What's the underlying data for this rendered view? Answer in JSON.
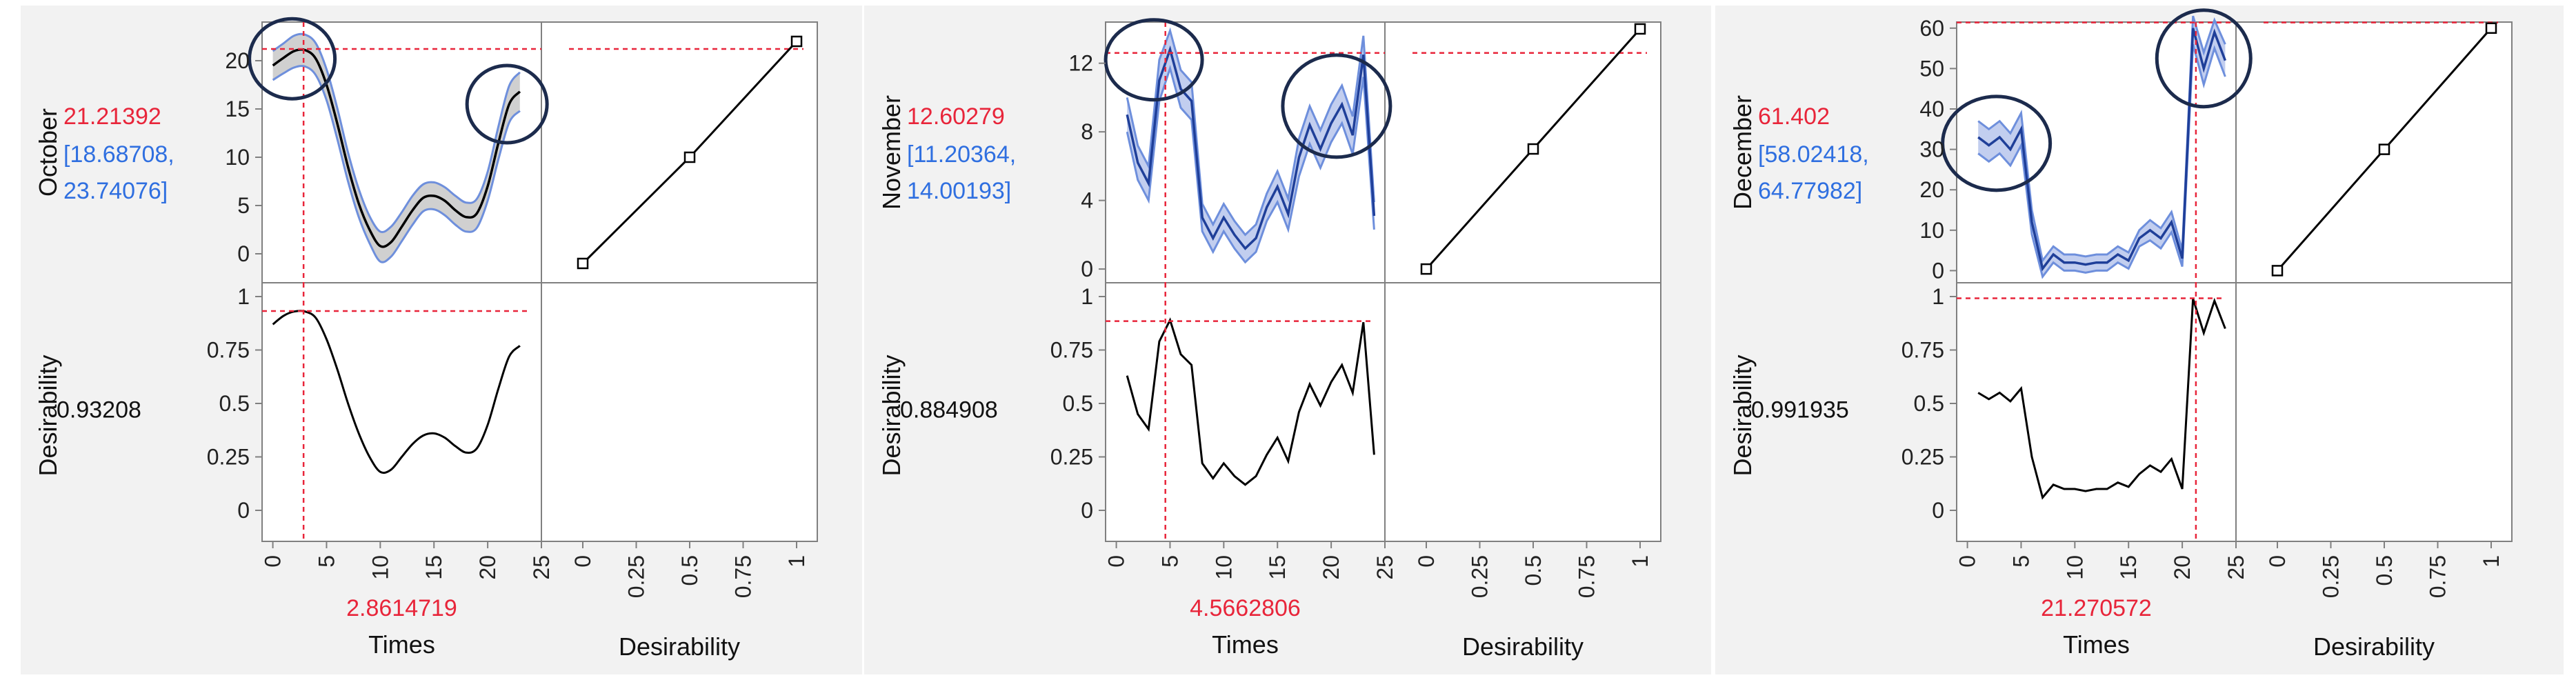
{
  "ui": {
    "colors": {
      "panel_bg": "#f2f2f2",
      "plot_bg": "#ffffff",
      "frame": "#808080",
      "curve": "#000000",
      "band_fill": "#c8c8c8",
      "band_edge": "#6e8fdc",
      "series_line": "#1f3f99",
      "crosshair": "#e8253a",
      "value_red": "#e8253a",
      "interval_blue": "#2f6fe0",
      "circle": "#1c2b4d"
    }
  },
  "chart_data": [
    {
      "type": "line",
      "response_label": "October",
      "predicted_value": "21.21392",
      "interval_open": "[18.68708,",
      "interval_close": "23.74076]",
      "desirability_label": "Desirability",
      "desirability_value": "0.93208",
      "x_label": "Times",
      "x_value": "2.8614719",
      "x_current": 2.8614719,
      "fn_x_label": "Desirability",
      "smooth": true,
      "band_style": "gray",
      "xlim": [
        -1,
        25
      ],
      "ylim": [
        -3,
        24
      ],
      "y_ticks": [
        0,
        5,
        10,
        15,
        20
      ],
      "y_tick_labels": [
        "0",
        "5",
        "10",
        "15",
        "20"
      ],
      "d_ticks": [
        0,
        0.25,
        0.5,
        0.75,
        1
      ],
      "d_tick_labels": [
        "0",
        "0.25",
        "0.5",
        "0.75",
        "1"
      ],
      "x_ticks": [
        0,
        5,
        10,
        15,
        20,
        25
      ],
      "x_tick_labels": [
        "0",
        "5",
        "10",
        "15",
        "20",
        "25"
      ],
      "f_ticks": [
        0,
        0.25,
        0.5,
        0.75,
        1
      ],
      "f_tick_labels": [
        "0",
        "0.25",
        "0.5",
        "0.75",
        "1"
      ],
      "x": [
        0,
        1,
        2,
        3,
        4,
        5,
        6,
        7,
        8,
        9,
        10,
        11,
        12,
        13,
        14,
        15,
        16,
        17,
        18,
        19,
        20,
        21,
        22,
        23
      ],
      "y": [
        19.5,
        20.3,
        21.0,
        21.1,
        20.2,
        17.5,
        13.5,
        9.0,
        5.2,
        2.5,
        0.8,
        1.2,
        2.8,
        4.5,
        5.8,
        6.0,
        5.5,
        4.5,
        3.8,
        4.2,
        7.0,
        11.5,
        15.5,
        16.8
      ],
      "y_lower": [
        18.0,
        18.7,
        19.3,
        19.4,
        18.5,
        15.9,
        11.9,
        7.5,
        3.8,
        1.1,
        -0.8,
        -0.3,
        1.3,
        3.0,
        4.4,
        4.6,
        4.0,
        3.0,
        2.3,
        2.7,
        5.5,
        9.8,
        13.6,
        14.8
      ],
      "y_upper": [
        21.0,
        21.8,
        22.6,
        22.7,
        21.8,
        19.1,
        15.1,
        10.5,
        6.7,
        3.9,
        2.3,
        2.8,
        4.3,
        6.0,
        7.2,
        7.4,
        6.9,
        6.0,
        5.3,
        5.7,
        8.5,
        13.2,
        17.4,
        18.8
      ],
      "d": [
        0.87,
        0.91,
        0.93,
        0.93,
        0.9,
        0.8,
        0.66,
        0.5,
        0.36,
        0.25,
        0.18,
        0.19,
        0.25,
        0.31,
        0.35,
        0.36,
        0.34,
        0.3,
        0.27,
        0.29,
        0.4,
        0.57,
        0.72,
        0.77
      ],
      "y_current": 21.21392,
      "d_current": 0.93208,
      "desirability_fn": [
        [
          0,
          -1
        ],
        [
          10.5,
          10
        ],
        [
          21.2,
          22
        ]
      ]
    },
    {
      "type": "line",
      "response_label": "November",
      "predicted_value": "12.60279",
      "interval_open": "[11.20364,",
      "interval_close": "14.00193]",
      "desirability_label": "Desirability",
      "desirability_value": "0.884908",
      "x_label": "Times",
      "x_value": "4.5662806",
      "x_current": 4.5662806,
      "fn_x_label": "Desirability",
      "smooth": false,
      "band_style": "blue",
      "xlim": [
        -1,
        25
      ],
      "ylim": [
        -0.8,
        14.4
      ],
      "y_ticks": [
        0,
        4,
        8,
        12
      ],
      "y_tick_labels": [
        "0",
        "4",
        "8",
        "12"
      ],
      "d_ticks": [
        0,
        0.25,
        0.5,
        0.75,
        1
      ],
      "d_tick_labels": [
        "0",
        "0.25",
        "0.5",
        "0.75",
        "1"
      ],
      "x_ticks": [
        0,
        5,
        10,
        15,
        20,
        25
      ],
      "x_tick_labels": [
        "0",
        "5",
        "10",
        "15",
        "20",
        "25"
      ],
      "f_ticks": [
        0,
        0.25,
        0.5,
        0.75,
        1
      ],
      "f_tick_labels": [
        "0",
        "0.25",
        "0.5",
        "0.75",
        "1"
      ],
      "x": [
        1,
        2,
        3,
        4,
        5,
        6,
        7,
        8,
        9,
        10,
        11,
        12,
        13,
        14,
        15,
        16,
        17,
        18,
        19,
        20,
        21,
        22,
        23,
        24
      ],
      "y": [
        9.0,
        6.2,
        5.0,
        11.0,
        12.8,
        10.5,
        9.8,
        3.0,
        1.8,
        3.0,
        2.0,
        1.2,
        1.8,
        3.6,
        4.8,
        3.2,
        6.5,
        8.4,
        7.0,
        8.5,
        9.6,
        7.8,
        12.5,
        3.1
      ],
      "y_lower": [
        8.0,
        5.2,
        4.0,
        9.8,
        11.7,
        9.4,
        8.7,
        2.2,
        1.0,
        2.2,
        1.2,
        0.4,
        1.0,
        2.8,
        3.9,
        2.3,
        5.4,
        7.3,
        5.9,
        7.4,
        8.5,
        6.7,
        11.2,
        2.3
      ],
      "y_upper": [
        10.0,
        7.2,
        6.0,
        12.2,
        13.9,
        11.6,
        10.9,
        3.8,
        2.6,
        3.8,
        2.8,
        2.0,
        2.6,
        4.4,
        5.7,
        4.1,
        7.6,
        9.5,
        8.1,
        9.6,
        10.7,
        8.9,
        13.6,
        3.9
      ],
      "d": [
        0.63,
        0.45,
        0.38,
        0.79,
        0.89,
        0.73,
        0.68,
        0.22,
        0.15,
        0.22,
        0.16,
        0.12,
        0.16,
        0.26,
        0.34,
        0.23,
        0.46,
        0.59,
        0.49,
        0.6,
        0.68,
        0.55,
        0.88,
        0.26
      ],
      "y_current": 12.60279,
      "d_current": 0.884908,
      "desirability_fn": [
        [
          0,
          0
        ],
        [
          7,
          7
        ],
        [
          14,
          14
        ]
      ]
    },
    {
      "type": "line",
      "response_label": "December",
      "predicted_value": "61.402",
      "interval_open": "[58.02418,",
      "interval_close": "64.77982]",
      "desirability_label": "Desirability",
      "desirability_value": "0.991935",
      "x_label": "Times",
      "x_value": "21.270572",
      "x_current": 21.270572,
      "fn_x_label": "Desirability",
      "smooth": false,
      "band_style": "blue",
      "xlim": [
        -1,
        25
      ],
      "ylim": [
        -3,
        61.5
      ],
      "y_ticks": [
        0,
        10,
        20,
        30,
        40,
        50,
        60
      ],
      "y_tick_labels": [
        "0",
        "10",
        "20",
        "30",
        "40",
        "50",
        "60"
      ],
      "d_ticks": [
        0,
        0.25,
        0.5,
        0.75,
        1
      ],
      "d_tick_labels": [
        "0",
        "0.25",
        "0.5",
        "0.75",
        "1"
      ],
      "x_ticks": [
        0,
        5,
        10,
        15,
        20,
        25
      ],
      "x_tick_labels": [
        "0",
        "5",
        "10",
        "15",
        "20",
        "25"
      ],
      "f_ticks": [
        0,
        0.25,
        0.5,
        0.75,
        1
      ],
      "f_tick_labels": [
        "0",
        "0.25",
        "0.5",
        "0.75",
        "1"
      ],
      "x": [
        1,
        2,
        3,
        4,
        5,
        6,
        7,
        8,
        9,
        10,
        11,
        12,
        13,
        14,
        15,
        16,
        17,
        18,
        19,
        20,
        21,
        22,
        23,
        24
      ],
      "y": [
        33,
        31,
        33,
        30,
        35,
        12,
        0.5,
        4,
        2,
        2,
        1.5,
        2,
        2,
        4,
        2.5,
        8,
        10,
        8,
        12,
        3,
        60,
        50,
        59,
        52
      ],
      "y_lower": [
        29,
        27,
        29,
        26,
        31,
        9,
        -1.5,
        2,
        0,
        0,
        -0.5,
        0,
        0,
        2,
        0.5,
        6,
        7.5,
        5.5,
        9.5,
        1,
        56,
        46,
        55,
        48
      ],
      "y_upper": [
        37,
        35,
        37,
        34,
        39,
        15,
        2.5,
        6,
        4,
        4,
        3.5,
        4,
        4,
        6,
        4.5,
        10,
        12.5,
        10.5,
        14.5,
        5,
        63,
        54,
        62,
        56
      ],
      "d": [
        0.55,
        0.52,
        0.55,
        0.51,
        0.57,
        0.25,
        0.06,
        0.12,
        0.1,
        0.1,
        0.09,
        0.1,
        0.1,
        0.13,
        0.11,
        0.17,
        0.21,
        0.18,
        0.24,
        0.1,
        0.99,
        0.83,
        0.98,
        0.85
      ],
      "y_current": 61.402,
      "d_current": 0.991935,
      "desirability_fn": [
        [
          0,
          0
        ],
        [
          30,
          30
        ],
        [
          60,
          60
        ]
      ]
    }
  ]
}
